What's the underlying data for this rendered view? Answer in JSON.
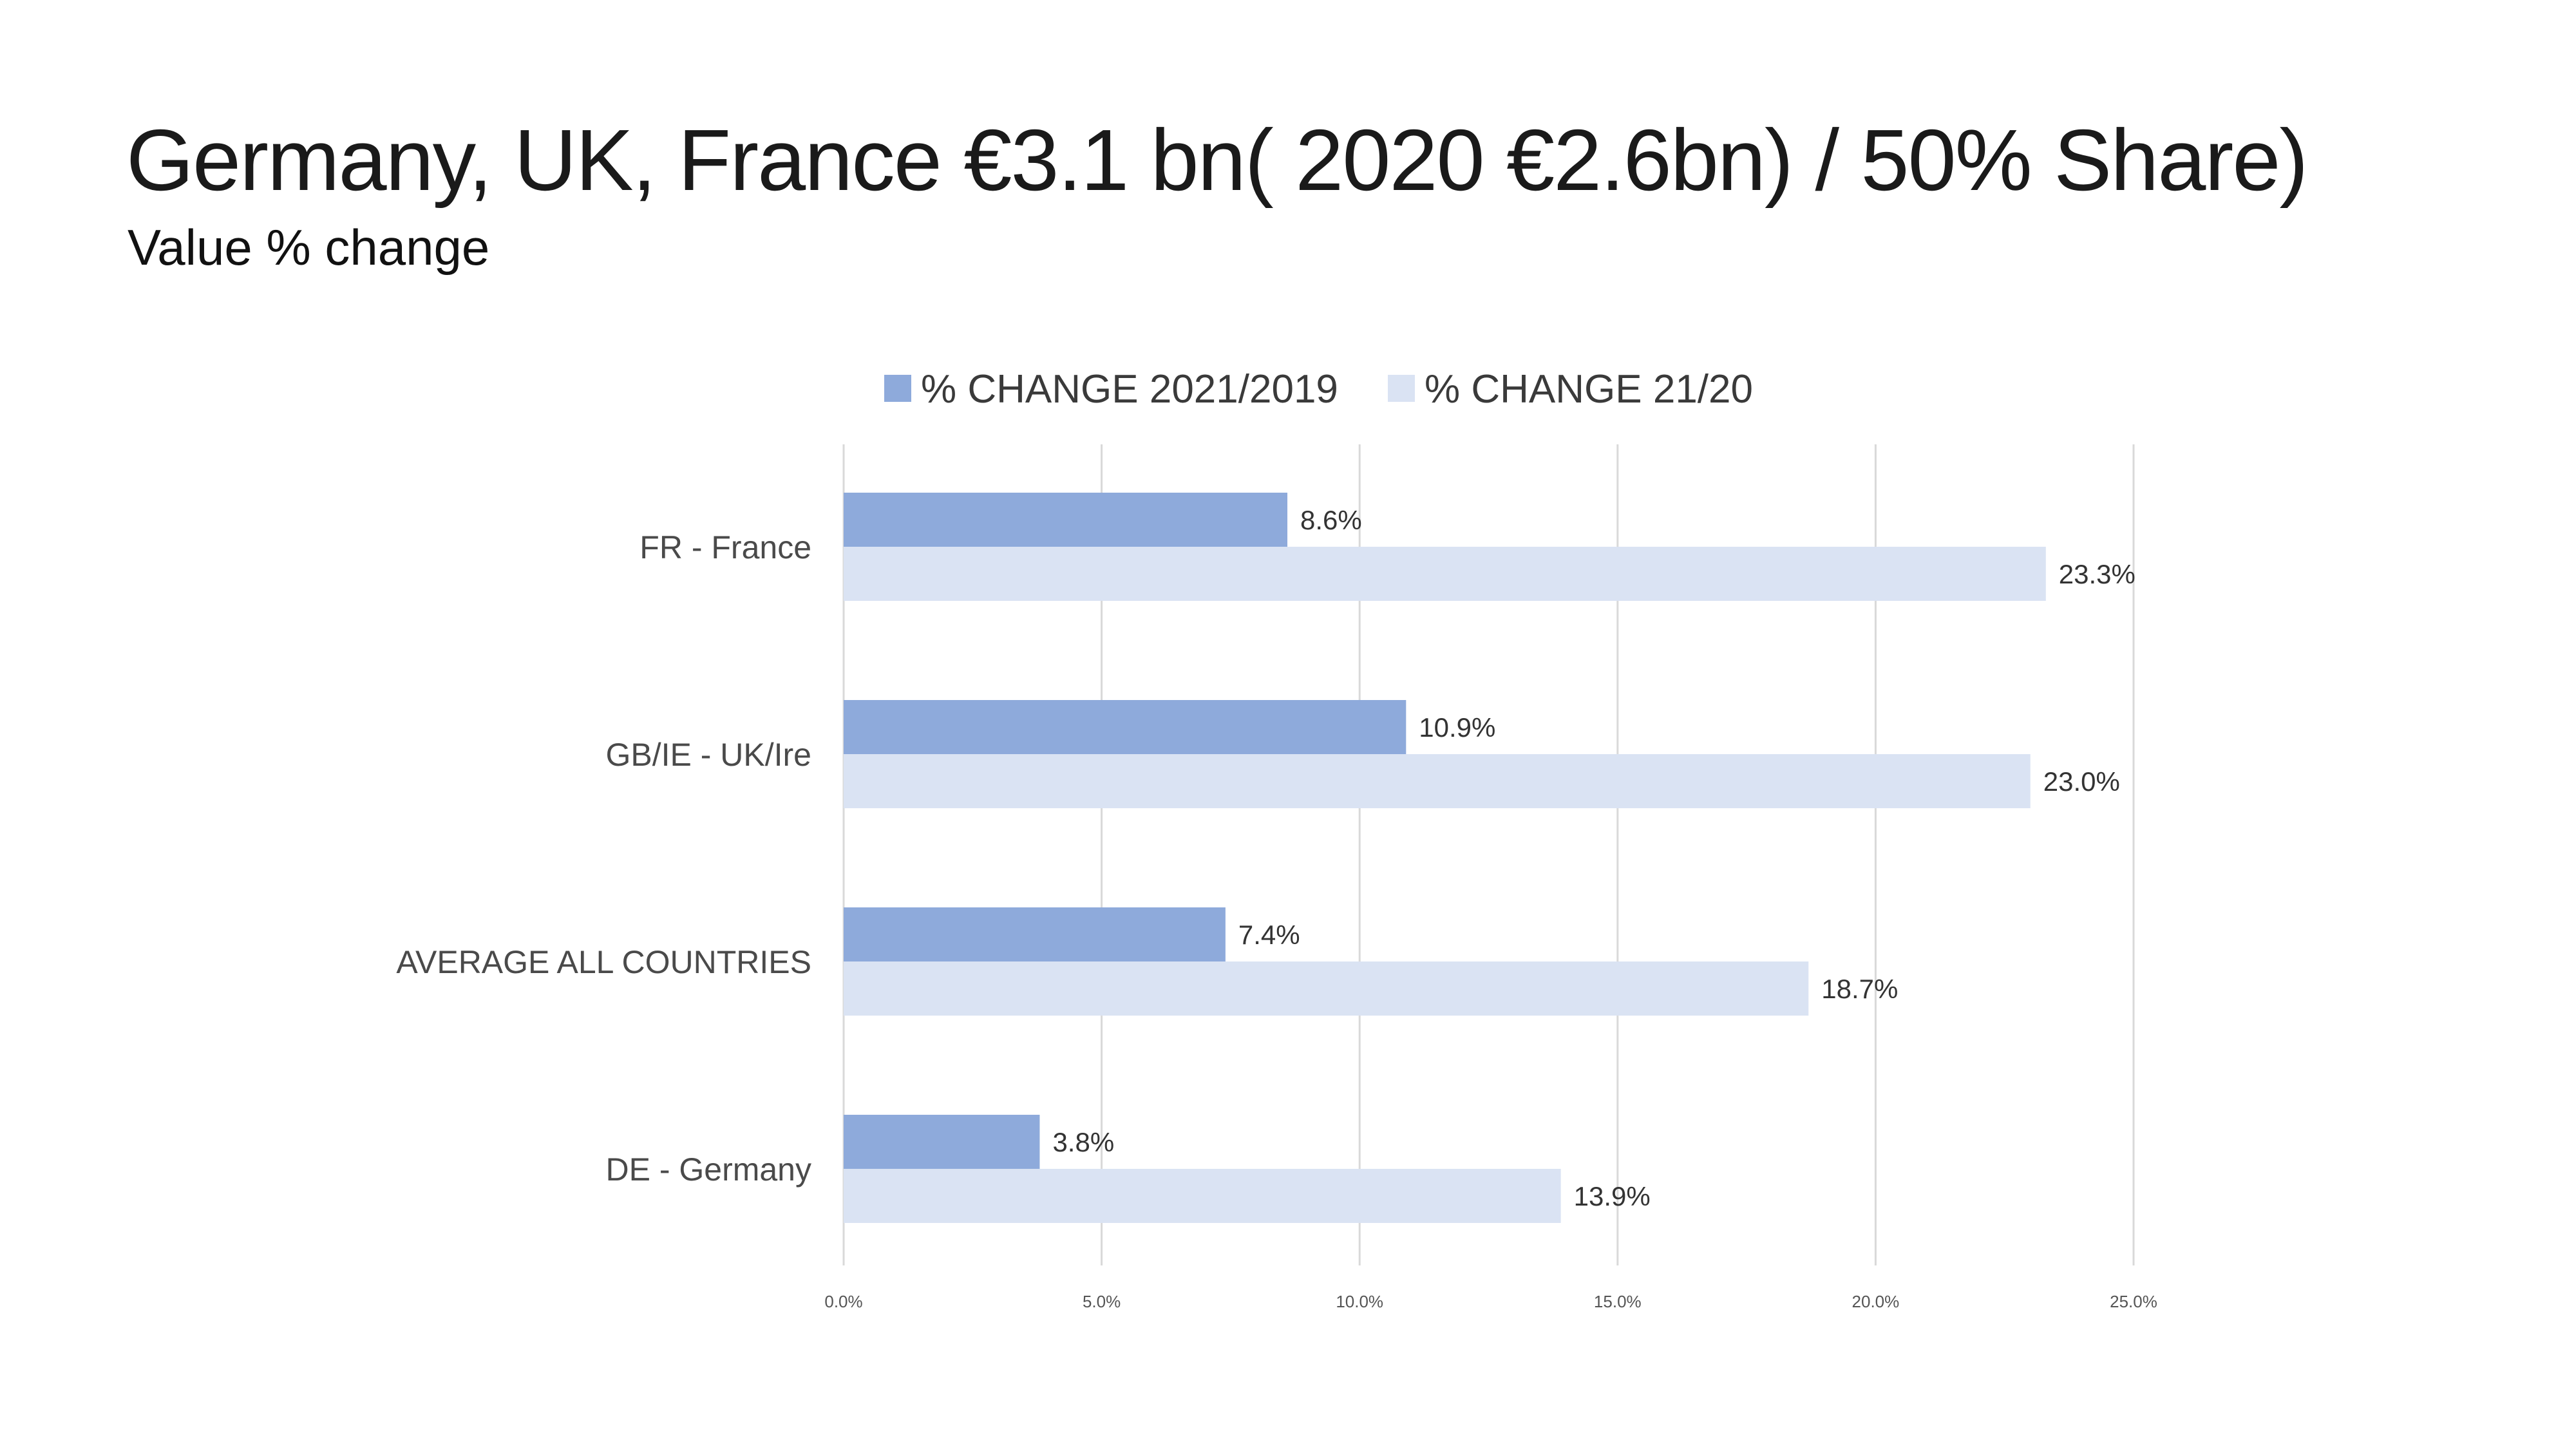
{
  "slide": {
    "title": "Germany, UK, France  €3.1 bn( 2020 €2.6bn) / 50% Share)",
    "subtitle": "Value % change"
  },
  "colors": {
    "series_1": "#8eaadb",
    "series_2": "#dae3f3",
    "gridline": "#d9d9d9"
  },
  "chart_data": {
    "type": "bar",
    "orientation": "horizontal",
    "categories": [
      "FR - France",
      "GB/IE - UK/Ire",
      "AVERAGE ALL COUNTRIES",
      "DE - Germany"
    ],
    "series": [
      {
        "name": "% CHANGE 2021/2019",
        "values": [
          8.6,
          10.9,
          7.4,
          3.8
        ],
        "labels": [
          "8.6%",
          "10.9%",
          "7.4%",
          "3.8%"
        ]
      },
      {
        "name": "% CHANGE 21/20",
        "values": [
          23.3,
          23.0,
          18.7,
          13.9
        ],
        "labels": [
          "23.3%",
          "23.0%",
          "18.7%",
          "13.9%"
        ]
      }
    ],
    "xlim": [
      0,
      25
    ],
    "x_ticks": [
      0,
      5,
      10,
      15,
      20,
      25
    ],
    "x_tick_labels": [
      "0.0%",
      "5.0%",
      "10.0%",
      "15.0%",
      "20.0%",
      "25.0%"
    ],
    "grid": true,
    "legend_position": "top"
  }
}
